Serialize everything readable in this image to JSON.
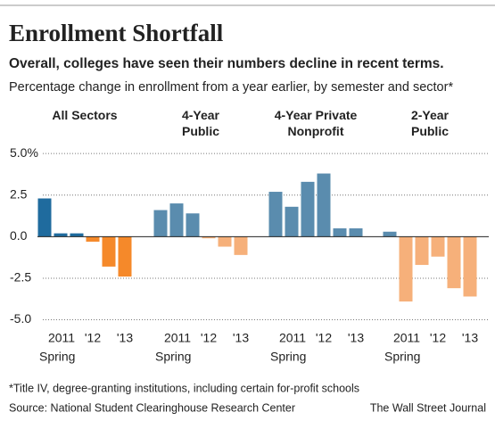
{
  "title": "Enrollment Shortfall",
  "subtitle": "Overall, colleges have seen their numbers decline in recent terms.",
  "description": "Percentage change in enrollment from a year earlier, by semester and sector*",
  "footnote": "*Title IV, degree-granting institutions, including certain for-profit schools",
  "source": "Source: National Student Clearinghouse Research Center",
  "credit": "The Wall Street Journal",
  "y_axis": {
    "ylim": [
      -5.4,
      5.6
    ],
    "yticks": [
      {
        "value": 5,
        "label": "5.0%"
      },
      {
        "value": 2.5,
        "label": "2.5"
      },
      {
        "value": 0,
        "label": "0.0"
      },
      {
        "value": -2.5,
        "label": "-2.5"
      },
      {
        "value": -5,
        "label": "-5.0"
      }
    ],
    "grid": true
  },
  "chart_data": [
    {
      "type": "bar",
      "title": "All Sectors",
      "categories": [
        null,
        "2011",
        null,
        "'12",
        null,
        "'13"
      ],
      "x_note": "Spring",
      "values": [
        2.3,
        0.2,
        0.2,
        -0.3,
        -1.8,
        -2.4
      ],
      "color_positive": "#1f6b9e",
      "color_negative": "#f5892a"
    },
    {
      "type": "bar",
      "title": "4-Year Public",
      "categories": [
        null,
        "2011",
        null,
        "'12",
        null,
        "'13"
      ],
      "x_note": "Spring",
      "values": [
        1.6,
        2.0,
        1.4,
        -0.1,
        -0.6,
        -1.1
      ],
      "color_positive": "#5a8cae",
      "color_negative": "#f6b07a"
    },
    {
      "type": "bar",
      "title": "4-Year Private Nonprofit",
      "categories": [
        null,
        "2011",
        null,
        "'12",
        null,
        "'13"
      ],
      "x_note": "Spring",
      "values": [
        2.7,
        1.8,
        3.3,
        3.8,
        0.5,
        0.5
      ],
      "color_positive": "#5a8cae",
      "color_negative": "#f6b07a"
    },
    {
      "type": "bar",
      "title": "2-Year Public",
      "categories": [
        null,
        "2011",
        null,
        "'12",
        null,
        "'13"
      ],
      "x_note": "Spring",
      "values": [
        0.3,
        -3.9,
        -1.7,
        -1.2,
        -3.1,
        -3.6
      ],
      "color_positive": "#5a8cae",
      "color_negative": "#f6b07a"
    }
  ]
}
